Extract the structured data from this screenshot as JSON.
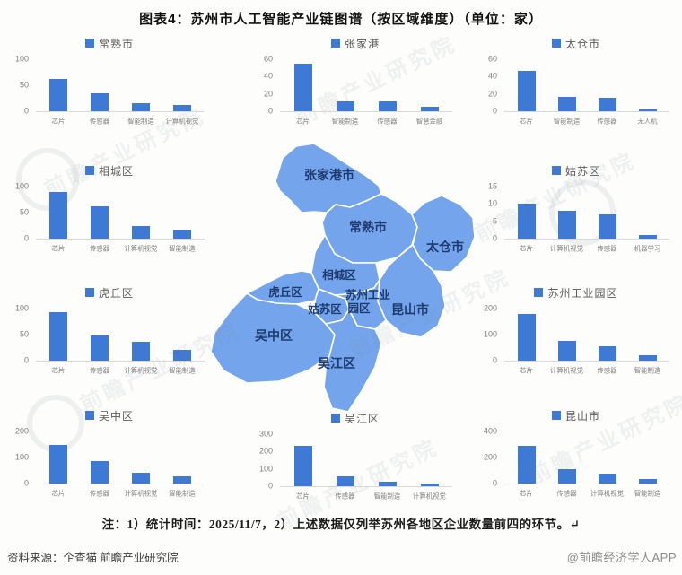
{
  "page": {
    "title": "图表4：苏州市人工智能产业链图谱（按区域维度）（单位：家）",
    "note": "注：1）统计时间：2025/11/7，2）上述数据仅列举苏州各地区企业数量前四的环节。↵",
    "source": "资料来源：企查猫 前瞻产业研究院",
    "brand": "@前瞻经济学人APP",
    "watermark": "前瞻产业研究院"
  },
  "colors": {
    "bar_blue": "#3e79d6",
    "map_fill": "#74a4ec",
    "map_label": "#1e3a6e"
  },
  "map": {
    "regions": [
      {
        "name": "张家港市"
      },
      {
        "name": "常熟市"
      },
      {
        "name": "太仓市"
      },
      {
        "name": "相城区"
      },
      {
        "name": "虎丘区"
      },
      {
        "name": "姑苏区"
      },
      {
        "name": "苏州工业园区",
        "line1": "苏州工业",
        "line2": "园区"
      },
      {
        "name": "昆山市"
      },
      {
        "name": "吴中区"
      },
      {
        "name": "吴江区"
      }
    ]
  },
  "chart_data": [
    {
      "type": "bar",
      "title": "常熟市",
      "categories": [
        "芯片",
        "传感器",
        "智能制造",
        "计算机视觉"
      ],
      "values": [
        62,
        35,
        15,
        12
      ],
      "yticks": [
        0,
        50,
        100
      ],
      "ylim": [
        0,
        100
      ],
      "ylabel": "",
      "xlabel": ""
    },
    {
      "type": "bar",
      "title": "张家港",
      "categories": [
        "芯片",
        "智能制造",
        "传感器",
        "智慧金融"
      ],
      "values": [
        55,
        11,
        11,
        5
      ],
      "yticks": [
        0,
        20,
        40,
        60
      ],
      "ylim": [
        0,
        60
      ],
      "ylabel": "",
      "xlabel": ""
    },
    {
      "type": "bar",
      "title": "太仓市",
      "categories": [
        "芯片",
        "智能制造",
        "传感器",
        "无人机"
      ],
      "values": [
        47,
        17,
        16,
        2
      ],
      "yticks": [
        0,
        20,
        40,
        60
      ],
      "ylim": [
        0,
        60
      ],
      "ylabel": "",
      "xlabel": ""
    },
    {
      "type": "bar",
      "title": "相城区",
      "categories": [
        "芯片",
        "传感器",
        "计算机视觉",
        "智能制造"
      ],
      "values": [
        90,
        62,
        25,
        17
      ],
      "yticks": [
        0,
        50,
        100
      ],
      "ylim": [
        0,
        100
      ],
      "ylabel": "",
      "xlabel": ""
    },
    {
      "type": "bar",
      "title": "姑苏区",
      "categories": [
        "芯片",
        "计算机视觉",
        "传感器",
        "机器学习"
      ],
      "values": [
        10,
        8,
        7,
        1
      ],
      "yticks": [
        0,
        5,
        10,
        15
      ],
      "ylim": [
        0,
        15
      ],
      "ylabel": "",
      "xlabel": ""
    },
    {
      "type": "bar",
      "title": "虎丘区",
      "categories": [
        "芯片",
        "传感器",
        "计算机视觉",
        "智能制造"
      ],
      "values": [
        93,
        48,
        37,
        20
      ],
      "yticks": [
        0,
        50,
        100
      ],
      "ylim": [
        0,
        100
      ],
      "ylabel": "",
      "xlabel": ""
    },
    {
      "type": "bar",
      "title": "苏州工业园区",
      "categories": [
        "芯片",
        "计算机视觉",
        "传感器",
        "智能制造"
      ],
      "values": [
        180,
        75,
        55,
        22
      ],
      "yticks": [
        0,
        100,
        200
      ],
      "ylim": [
        0,
        200
      ],
      "ylabel": "",
      "xlabel": ""
    },
    {
      "type": "bar",
      "title": "吴中区",
      "categories": [
        "芯片",
        "传感器",
        "计算机视觉",
        "智能制造"
      ],
      "values": [
        150,
        85,
        42,
        28
      ],
      "yticks": [
        0,
        100,
        200
      ],
      "ylim": [
        0,
        200
      ],
      "ylabel": "",
      "xlabel": ""
    },
    {
      "type": "bar",
      "title": "吴江区",
      "categories": [
        "芯片",
        "传感器",
        "智能制造",
        "计算机视觉"
      ],
      "values": [
        235,
        55,
        25,
        15
      ],
      "yticks": [
        0,
        100,
        200,
        300
      ],
      "ylim": [
        0,
        300
      ],
      "ylabel": "",
      "xlabel": ""
    },
    {
      "type": "bar",
      "title": "昆山市",
      "categories": [
        "芯片",
        "传感器",
        "计算机视觉",
        "智能制造"
      ],
      "values": [
        290,
        110,
        75,
        35
      ],
      "yticks": [
        0,
        200,
        400
      ],
      "ylim": [
        0,
        400
      ],
      "ylabel": "",
      "xlabel": ""
    }
  ]
}
